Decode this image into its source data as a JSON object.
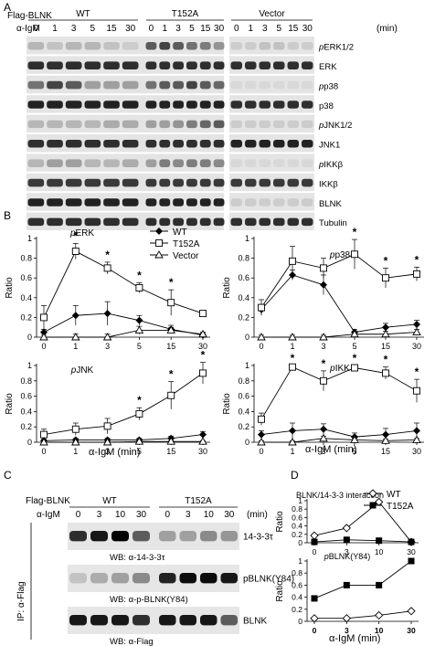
{
  "panels": {
    "A": "A",
    "B": "B",
    "C": "C",
    "D": "D"
  },
  "panel_a": {
    "flag_label": "Flag-BLNK",
    "groups": [
      "WT",
      "T152A",
      "Vector"
    ],
    "stim_label": "α-IgM",
    "unit": "(min)",
    "times": [
      "0",
      "1",
      "3",
      "5",
      "15",
      "30"
    ],
    "rows": [
      {
        "label": "pERK1/2",
        "ital": "p",
        "rest": "ERK1/2"
      },
      {
        "label": "ERK",
        "ital": "",
        "rest": "ERK"
      },
      {
        "label": "pp38",
        "ital": "p",
        "rest": "p38"
      },
      {
        "label": "p38",
        "ital": "",
        "rest": "p38"
      },
      {
        "label": "pJNK1/2",
        "ital": "p",
        "rest": "JNK1/2"
      },
      {
        "label": "JNK1",
        "ital": "",
        "rest": "JNK1"
      },
      {
        "label": "pIKKβ",
        "ital": "p",
        "rest": "IKKβ"
      },
      {
        "label": "IKKβ",
        "ital": "",
        "rest": "IKKβ"
      },
      {
        "label": "BLNK",
        "ital": "",
        "rest": "BLNK"
      },
      {
        "label": "Tubulin",
        "ital": "",
        "rest": "Tubulin"
      }
    ]
  },
  "panel_c": {
    "flag_label": "Flag-BLNK",
    "groups": [
      "WT",
      "T152A"
    ],
    "stim_label": "α-IgM",
    "unit": "(min)",
    "times": [
      "0",
      "3",
      "10",
      "30"
    ],
    "side_label": "IP: α-Flag",
    "rows": [
      {
        "right": "14-3-3τ",
        "wb": "WB: α-14-3-3τ"
      },
      {
        "right": "pBLNK(Y84)",
        "wb": "WB: α-p-BLNK(Y84)"
      },
      {
        "right": "BLNK",
        "wb": "WB: α-Flag"
      }
    ]
  },
  "chart_data": [
    {
      "type": "line",
      "id": "pERK",
      "title": "pERK",
      "ylabel": "Ratio",
      "xlabel": "",
      "categories": [
        "0",
        "1",
        "3",
        "5",
        "15",
        "30"
      ],
      "ylim": [
        0,
        1
      ],
      "yticks": [
        "0",
        "0.2",
        "0.4",
        "0.6",
        "0.8",
        "1"
      ],
      "series": [
        {
          "name": "WT",
          "values": [
            0.05,
            0.22,
            0.24,
            0.17,
            0.08,
            0.02
          ],
          "err": [
            0.03,
            0.1,
            0.12,
            0.05,
            0.04,
            0.02
          ]
        },
        {
          "name": "T152A",
          "values": [
            0.2,
            0.87,
            0.7,
            0.5,
            0.35,
            0.24
          ],
          "err": [
            0.12,
            0.08,
            0.06,
            0.05,
            0.13,
            0.03
          ]
        },
        {
          "name": "Vector",
          "values": [
            0.0,
            0.0,
            0.0,
            0.07,
            0.07,
            0.03
          ],
          "err": [
            0.02,
            0.03,
            0.03,
            0.04,
            0.03,
            0.02
          ]
        }
      ],
      "stars": [
        "1",
        "3",
        "5",
        "15"
      ],
      "legend": [
        "WT",
        "T152A",
        "Vector"
      ]
    },
    {
      "type": "line",
      "id": "pp38",
      "title": "pp38",
      "ylabel": "Ratio",
      "xlabel": "",
      "categories": [
        "0",
        "1",
        "3",
        "5",
        "15",
        "30"
      ],
      "ylim": [
        0,
        1
      ],
      "yticks": [
        "0",
        "0.2",
        "0.4",
        "0.6",
        "0.8",
        "1"
      ],
      "series": [
        {
          "name": "WT",
          "values": [
            0.28,
            0.63,
            0.53,
            0.05,
            0.1,
            0.13
          ],
          "err": [
            0.05,
            0.05,
            0.1,
            0.03,
            0.04,
            0.04
          ]
        },
        {
          "name": "T152A",
          "values": [
            0.3,
            0.77,
            0.7,
            0.84,
            0.6,
            0.64
          ],
          "err": [
            0.08,
            0.15,
            0.1,
            0.15,
            0.1,
            0.07
          ]
        },
        {
          "name": "Vector",
          "values": [
            0.0,
            0.0,
            0.0,
            0.03,
            0.03,
            0.05
          ],
          "err": [
            0.02,
            0.02,
            0.02,
            0.03,
            0.03,
            0.03
          ]
        }
      ],
      "stars": [
        "5",
        "15",
        "30"
      ]
    },
    {
      "type": "line",
      "id": "pJNK",
      "title": "pJNK",
      "ylabel": "Ratio",
      "xlabel": "",
      "categories": [
        "0",
        "1",
        "3",
        "5",
        "15",
        "30"
      ],
      "ylim": [
        0,
        1
      ],
      "yticks": [
        "0",
        "0.2",
        "0.4",
        "0.6",
        "0.8",
        "1"
      ],
      "series": [
        {
          "name": "WT",
          "values": [
            0.02,
            0.03,
            0.03,
            0.03,
            0.05,
            0.1
          ],
          "err": [
            0.02,
            0.02,
            0.02,
            0.02,
            0.03,
            0.04
          ]
        },
        {
          "name": "T152A",
          "values": [
            0.1,
            0.17,
            0.21,
            0.37,
            0.61,
            0.9
          ],
          "err": [
            0.07,
            0.08,
            0.1,
            0.08,
            0.18,
            0.14
          ]
        },
        {
          "name": "Vector",
          "values": [
            0.0,
            0.0,
            0.0,
            0.01,
            0.01,
            0.01
          ],
          "err": [
            0.01,
            0.01,
            0.01,
            0.01,
            0.01,
            0.01
          ]
        }
      ],
      "stars": [
        "5",
        "15",
        "30"
      ]
    },
    {
      "type": "line",
      "id": "pIKK",
      "title": "pIKK",
      "ylabel": "Ratio",
      "xlabel": "",
      "categories": [
        "0",
        "1",
        "3",
        "5",
        "15",
        "30"
      ],
      "ylim": [
        0,
        1
      ],
      "yticks": [
        "0",
        "0.2",
        "0.4",
        "0.6",
        "0.8",
        "1"
      ],
      "series": [
        {
          "name": "WT",
          "values": [
            0.1,
            0.15,
            0.17,
            0.07,
            0.1,
            0.15
          ],
          "err": [
            0.05,
            0.1,
            0.07,
            0.05,
            0.08,
            0.1
          ]
        },
        {
          "name": "T152A",
          "values": [
            0.3,
            0.98,
            0.8,
            0.97,
            0.9,
            0.67
          ],
          "err": [
            0.08,
            0.02,
            0.13,
            0.03,
            0.08,
            0.15
          ]
        },
        {
          "name": "Vector",
          "values": [
            0.0,
            0.0,
            0.05,
            0.03,
            0.02,
            0.03
          ],
          "err": [
            0.02,
            0.02,
            0.03,
            0.02,
            0.02,
            0.02
          ]
        }
      ],
      "stars": [
        "1",
        "3",
        "5",
        "15",
        "30"
      ]
    },
    {
      "type": "line",
      "id": "interaction",
      "title": "BLNK/14-3-3 interaction",
      "ylabel": "Ratio",
      "xlabel": "",
      "categories": [
        "0",
        "3",
        "10",
        "30"
      ],
      "ylim": [
        0,
        1
      ],
      "yticks": [
        "0",
        "0.2",
        "0.4",
        "0.6",
        "0.8",
        "1"
      ],
      "series": [
        {
          "name": "WT",
          "values": [
            0.17,
            0.35,
            0.97,
            0.02
          ]
        },
        {
          "name": "T152A",
          "values": [
            0.02,
            0.07,
            0.05,
            0.02
          ]
        }
      ],
      "legend": [
        "WT",
        "T152A"
      ]
    },
    {
      "type": "line",
      "id": "pBLNK",
      "title": "pBLNK(Y84)",
      "ylabel": "Ratio",
      "xlabel": "",
      "categories": [
        "0",
        "3",
        "10",
        "30"
      ],
      "ylim": [
        0,
        1
      ],
      "yticks": [
        "0",
        "0.2",
        "0.4",
        "0.6",
        "0.8",
        "1"
      ],
      "series": [
        {
          "name": "WT",
          "values": [
            0.05,
            0.05,
            0.1,
            0.17
          ]
        },
        {
          "name": "T152A",
          "values": [
            0.38,
            0.6,
            0.6,
            1.0
          ]
        }
      ]
    }
  ],
  "b_xlabel": "α-IgM (min)",
  "d_xlabel": "α-IgM (min)"
}
